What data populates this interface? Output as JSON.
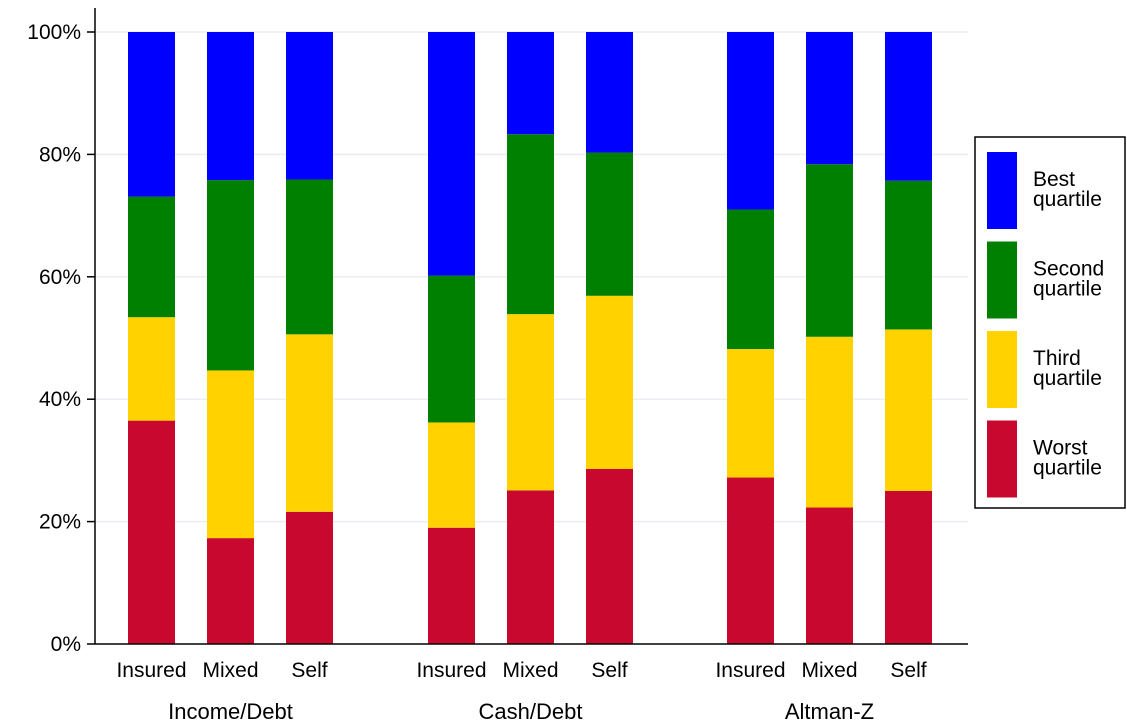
{
  "chart_data": {
    "type": "bar",
    "stacked": true,
    "groups": [
      {
        "label": "Income/Debt",
        "categories": [
          "Insured",
          "Mixed",
          "Self"
        ]
      },
      {
        "label": "Cash/Debt",
        "categories": [
          "Insured",
          "Mixed",
          "Self"
        ]
      },
      {
        "label": "Altman-Z",
        "categories": [
          "Insured",
          "Mixed",
          "Self"
        ]
      }
    ],
    "series": [
      {
        "name": "Worst quartile",
        "color": "#c8082f",
        "values": [
          36.5,
          17.3,
          21.6,
          19.0,
          25.1,
          28.6,
          27.2,
          22.3,
          25.0
        ]
      },
      {
        "name": "Third quartile",
        "color": "#ffd200",
        "values": [
          16.9,
          27.4,
          29.0,
          17.2,
          28.8,
          28.3,
          21.0,
          27.9,
          26.4
        ]
      },
      {
        "name": "Second quartile",
        "color": "#008000",
        "values": [
          19.7,
          31.1,
          25.3,
          24.0,
          29.4,
          23.4,
          22.8,
          28.2,
          24.3
        ]
      },
      {
        "name": "Best quartile",
        "color": "#0000ff",
        "values": [
          26.9,
          24.2,
          24.1,
          39.8,
          16.7,
          19.7,
          29.0,
          21.6,
          24.3
        ]
      }
    ],
    "y_axis": {
      "min": 0,
      "max": 100,
      "ticks": [
        0,
        20,
        40,
        60,
        80,
        100
      ],
      "tick_labels": [
        "0%",
        "20%",
        "40%",
        "60%",
        "80%",
        "100%"
      ]
    },
    "grid": true,
    "legend": {
      "placement": "right",
      "entries": [
        {
          "line1": "Best",
          "line2": "quartile",
          "color": "#0000ff"
        },
        {
          "line1": "Second",
          "line2": "quartile",
          "color": "#008000"
        },
        {
          "line1": "Third",
          "line2": "quartile",
          "color": "#ffd200"
        },
        {
          "line1": "Worst",
          "line2": "quartile",
          "color": "#c8082f"
        }
      ]
    }
  }
}
